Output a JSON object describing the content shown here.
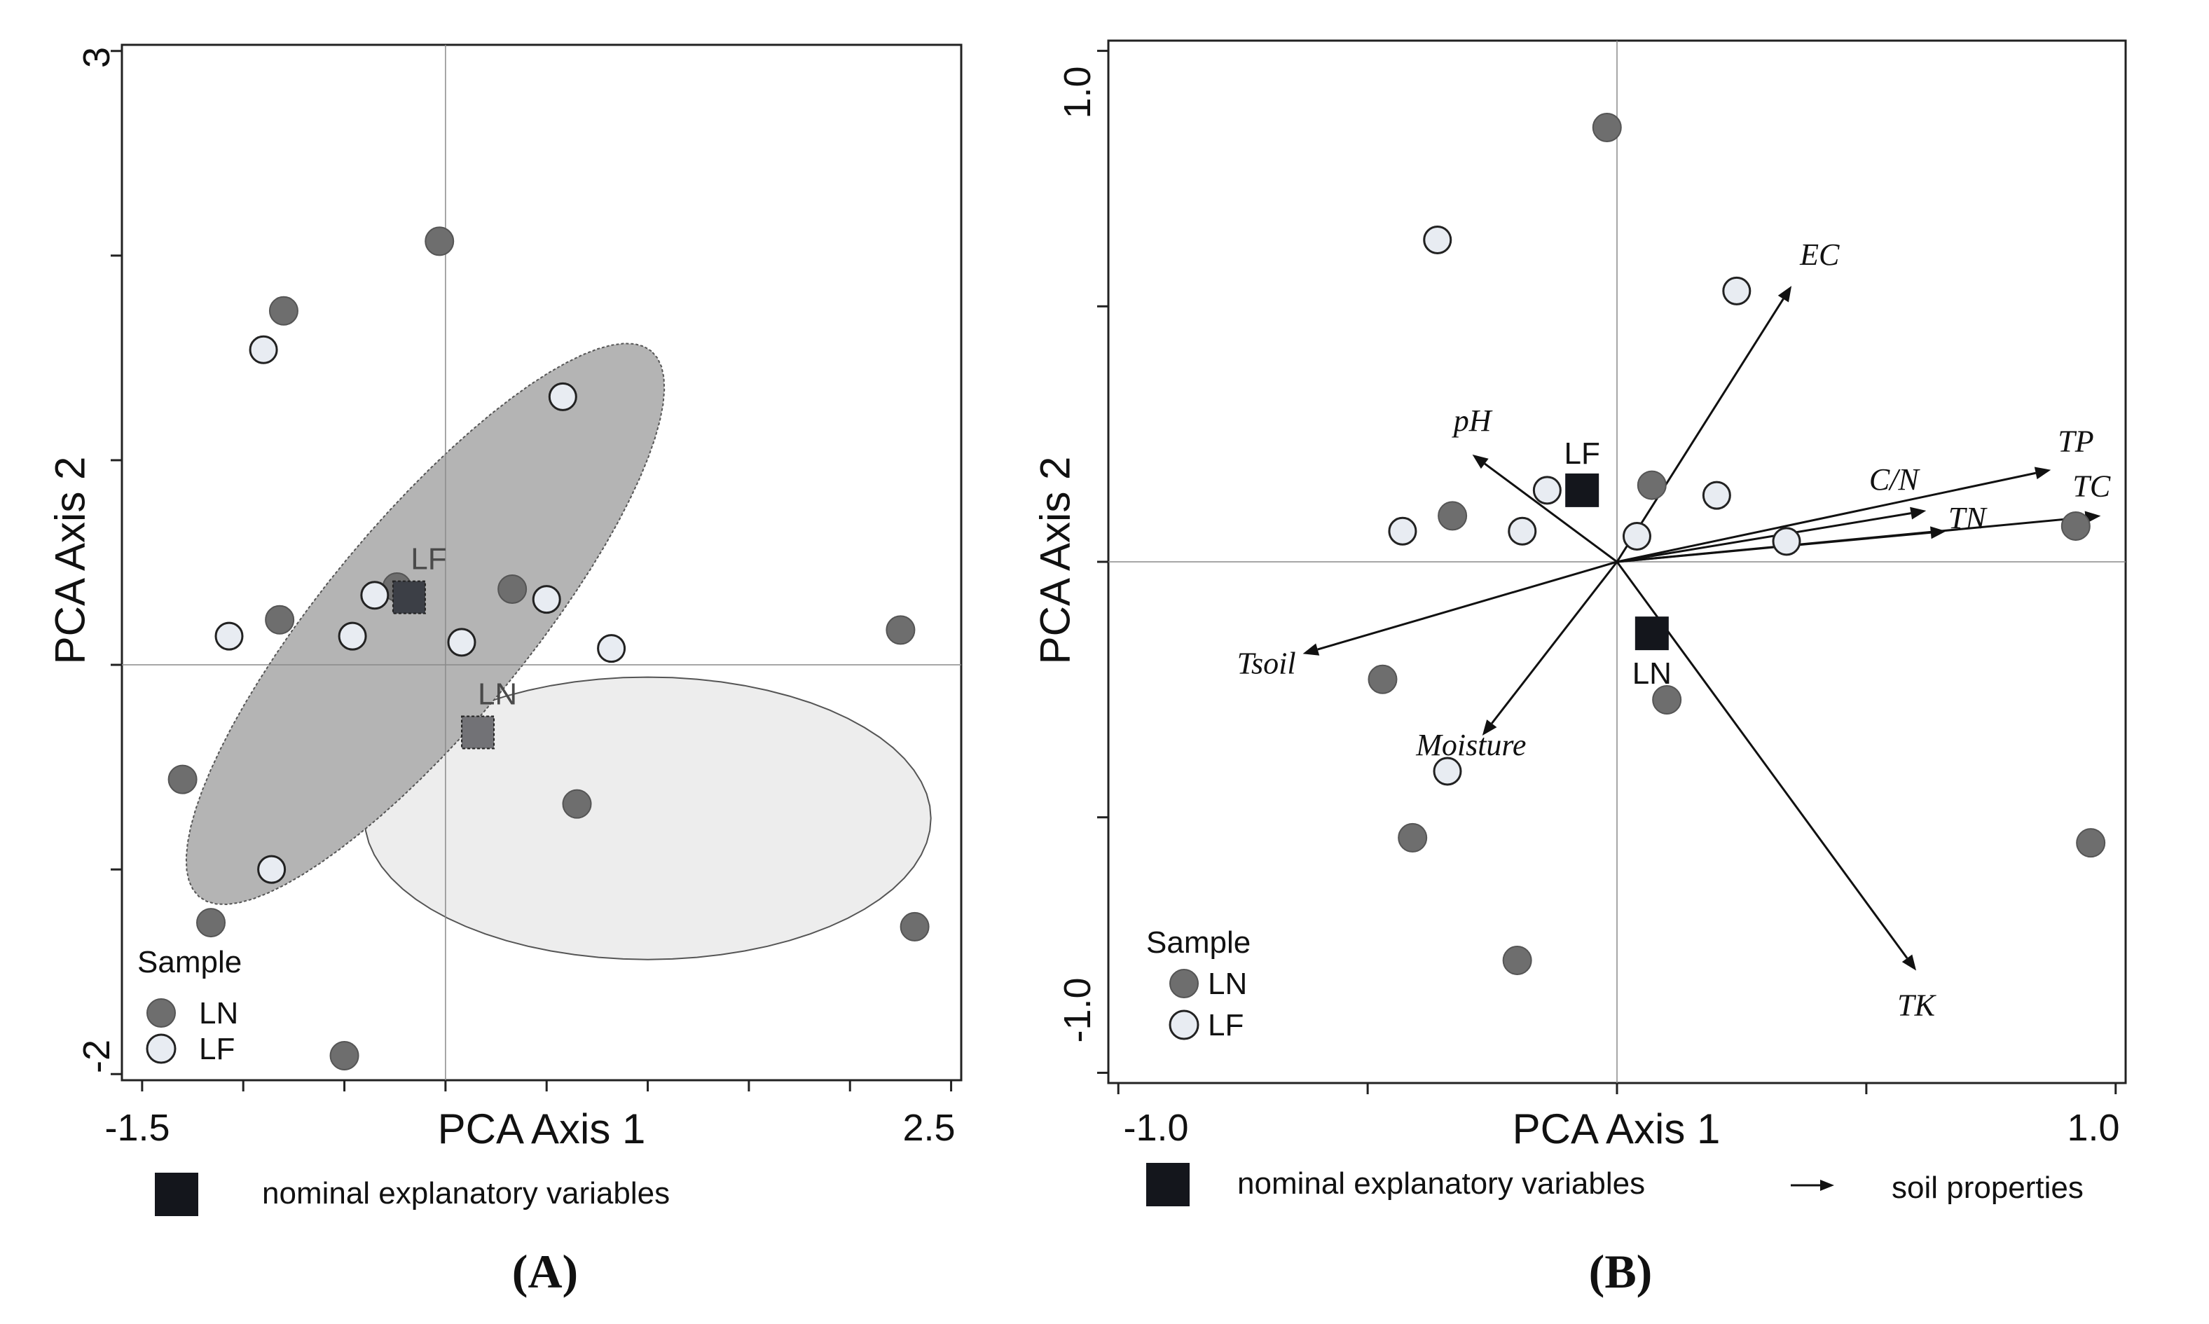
{
  "chart_data": [
    {
      "panel_label": "(A)",
      "type": "scatter",
      "xlabel": "PCA Axis 1",
      "ylabel": "PCA Axis 2",
      "xlim": [
        -1.6,
        2.55
      ],
      "ylim": [
        -2.03,
        3.03
      ],
      "x_tick_values": [
        -1.5,
        -1.0,
        -0.5,
        0.0,
        0.5,
        1.0,
        1.5,
        2.0,
        2.5
      ],
      "y_tick_values": [
        -2,
        -1,
        0,
        1,
        2,
        3
      ],
      "x_tick_labels": [
        {
          "value": -1.5,
          "text": "-1.5"
        },
        {
          "value": 2.5,
          "text": "2.5"
        }
      ],
      "y_tick_labels": [
        {
          "value": 3,
          "text": "3"
        },
        {
          "value": -2,
          "text": "-2"
        }
      ],
      "legend": {
        "title": "Sample",
        "placement": "bottom-left",
        "entries": [
          "LN",
          "LF"
        ]
      },
      "series": [
        {
          "name": "LN",
          "color": "#6e6e6e",
          "points": [
            [
              -0.03,
              2.07
            ],
            [
              -0.8,
              1.73
            ],
            [
              0.33,
              0.37
            ],
            [
              -0.24,
              0.38
            ],
            [
              2.25,
              0.17
            ],
            [
              0.65,
              -0.68
            ],
            [
              -1.16,
              -1.26
            ],
            [
              -0.5,
              -1.91
            ],
            [
              2.32,
              -1.28
            ],
            [
              -1.3,
              -0.56
            ],
            [
              -0.82,
              0.22
            ]
          ]
        },
        {
          "name": "LF",
          "color": "#e8ecf2",
          "points": [
            [
              -0.9,
              1.54
            ],
            [
              0.58,
              1.31
            ],
            [
              -0.35,
              0.34
            ],
            [
              0.5,
              0.32
            ],
            [
              -1.07,
              0.14
            ],
            [
              -0.46,
              0.14
            ],
            [
              0.08,
              0.11
            ],
            [
              0.82,
              0.08
            ],
            [
              -0.86,
              -1.0
            ]
          ]
        }
      ],
      "centroids": [
        {
          "label": "LF",
          "x": -0.18,
          "y": 0.33
        },
        {
          "label": "LN",
          "x": 0.16,
          "y": -0.33
        }
      ],
      "ellipses": [
        {
          "group": "LF",
          "center": [
            -0.1,
            0.2
          ],
          "semi_axes": [
            1.74,
            0.5
          ],
          "angle_deg": 50,
          "fill": "#b4b4b4"
        },
        {
          "group": "LN",
          "center": [
            1.0,
            -0.75
          ],
          "semi_axes": [
            1.4,
            0.69
          ],
          "angle_deg": 0,
          "fill": "#ededed"
        }
      ],
      "footnote": "nominal explanatory variables"
    },
    {
      "panel_label": "(B)",
      "type": "scatter",
      "xlabel": "PCA Axis 1",
      "ylabel": "PCA Axis 2",
      "xlim": [
        -1.02,
        1.02
      ],
      "ylim": [
        -1.02,
        1.02
      ],
      "x_tick_values": [
        -1.0,
        -0.5,
        0.0,
        0.5,
        1.0
      ],
      "y_tick_values": [
        -1.0,
        -0.5,
        0.0,
        0.5,
        1.0
      ],
      "x_tick_labels": [
        {
          "value": -1.0,
          "text": "-1.0"
        },
        {
          "value": 1.0,
          "text": "1.0"
        }
      ],
      "y_tick_labels": [
        {
          "value": 1.0,
          "text": "1.0"
        },
        {
          "value": -1.0,
          "text": "-1.0"
        }
      ],
      "legend": {
        "title": "Sample",
        "placement": "bottom-left",
        "entries": [
          "LN",
          "LF"
        ]
      },
      "series": [
        {
          "name": "LN",
          "color": "#6e6e6e",
          "points": [
            [
              -0.02,
              0.85
            ],
            [
              0.07,
              0.15
            ],
            [
              -0.33,
              0.09
            ],
            [
              -0.47,
              -0.23
            ],
            [
              0.1,
              -0.27
            ],
            [
              -0.41,
              -0.54
            ],
            [
              -0.2,
              -0.78
            ],
            [
              0.92,
              0.07
            ],
            [
              0.95,
              -0.55
            ]
          ]
        },
        {
          "name": "LF",
          "color": "#e8ecf2",
          "points": [
            [
              -0.36,
              0.63
            ],
            [
              0.24,
              0.53
            ],
            [
              -0.14,
              0.14
            ],
            [
              0.2,
              0.13
            ],
            [
              -0.43,
              0.06
            ],
            [
              -0.19,
              0.06
            ],
            [
              0.04,
              0.05
            ],
            [
              0.34,
              0.04
            ],
            [
              -0.34,
              -0.41
            ]
          ]
        }
      ],
      "centroids": [
        {
          "label": "LF",
          "x": -0.07,
          "y": 0.14
        },
        {
          "label": "LN",
          "x": 0.07,
          "y": -0.14
        }
      ],
      "vectors": [
        {
          "name": "EC",
          "x": 0.35,
          "y": 0.54
        },
        {
          "name": "pH",
          "x": -0.29,
          "y": 0.21
        },
        {
          "name": "TP",
          "x": 0.87,
          "y": 0.18
        },
        {
          "name": "C/N",
          "x": 0.62,
          "y": 0.1
        },
        {
          "name": "TN",
          "x": 0.66,
          "y": 0.06
        },
        {
          "name": "TC",
          "x": 0.97,
          "y": 0.09
        },
        {
          "name": "Tsoil",
          "x": -0.63,
          "y": -0.18
        },
        {
          "name": "Moisture",
          "x": -0.27,
          "y": -0.34
        },
        {
          "name": "TK",
          "x": 0.6,
          "y": -0.8
        }
      ],
      "footnote": "nominal explanatory variables",
      "vector_legend": "soil properties"
    }
  ]
}
